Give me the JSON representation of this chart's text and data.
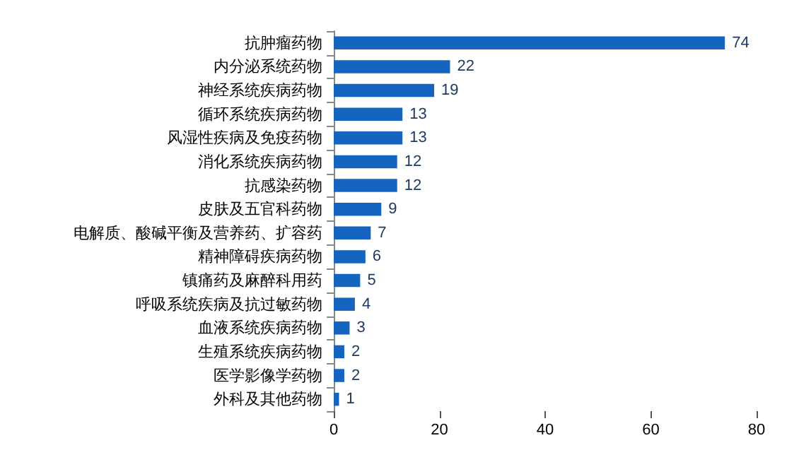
{
  "chart_data": {
    "type": "bar",
    "orientation": "horizontal",
    "categories": [
      "抗肿瘤药物",
      "内分泌系统药物",
      "神经系统疾病药物",
      "循环系统疾病药物",
      "风湿性疾病及免疫药物",
      "消化系统疾病药物",
      "抗感染药物",
      "皮肤及五官科药物",
      "电解质、酸碱平衡及营养药、扩容药",
      "精神障碍疾病药物",
      "镇痛药及麻醉科用药",
      "呼吸系统疾病及抗过敏药物",
      "血液系统疾病药物",
      "生殖系统疾病药物",
      "医学影像学药物",
      "外科及其他药物"
    ],
    "values": [
      74,
      22,
      19,
      13,
      13,
      12,
      12,
      9,
      7,
      6,
      5,
      4,
      3,
      2,
      2,
      1
    ],
    "color": "#1565c0",
    "xlim": [
      0,
      80
    ],
    "xticks": [
      0,
      20,
      40,
      60,
      80
    ],
    "grid": false,
    "data_labels": true
  }
}
